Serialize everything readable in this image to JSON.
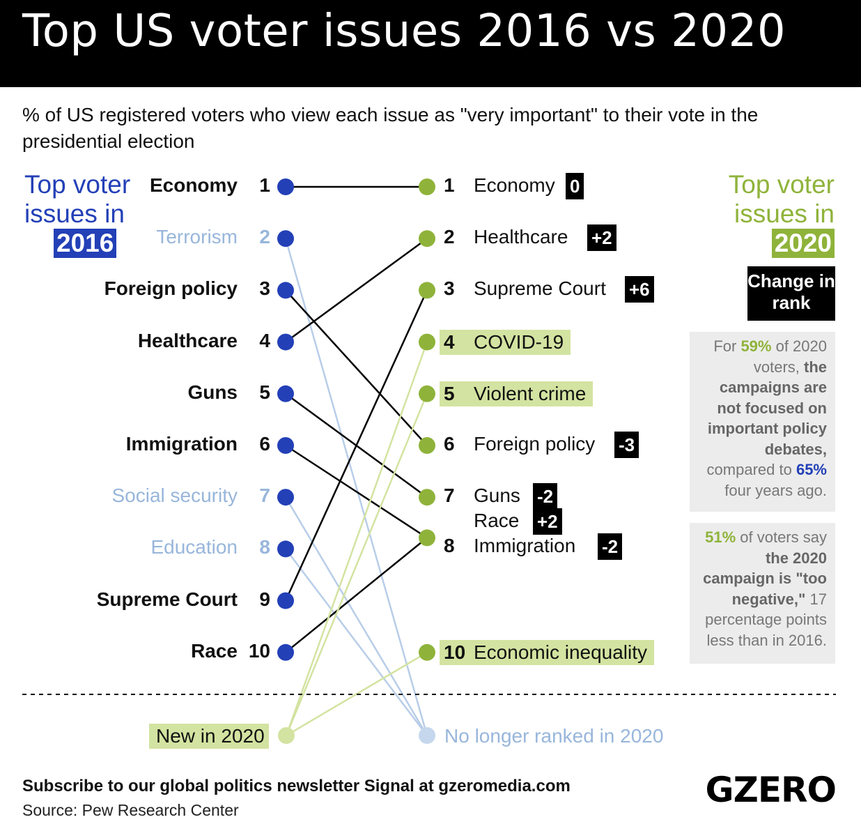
{
  "title": "Top US voter issues 2016 vs 2020",
  "subtitle": "% of US registered voters who view each issue as \"very important\" to their vote in the presidential election",
  "legend_2016": {
    "text": "Top voter issues in",
    "year": "2016"
  },
  "legend_2020": {
    "text": "Top voter issues in",
    "year": "2020"
  },
  "change_label": "Change in rank",
  "notes": {
    "note1": {
      "a": "For ",
      "pct1": "59%",
      "b": " of 2020 voters, ",
      "bold": "the campaigns are not focused on important policy debates,",
      "c": " compared to ",
      "pct2": "65%",
      "d": " four years ago."
    },
    "note2": {
      "pct": "51%",
      "a": " of voters say ",
      "bold1": "the 2020 campaign is \"too negative,\"",
      "b": " 17 percentage points less than in 2016."
    }
  },
  "new_label": "New in 2020",
  "dropped_label": "No longer ranked in 2020",
  "footer": {
    "subscribe": "Subscribe to our global politics newsletter Signal at gzeromedia.com",
    "source": "Source: Pew Research Center"
  },
  "logo": "GZERO",
  "colors": {
    "blue": "#2340b7",
    "green": "#8fb33a",
    "new": "#d3e3a1",
    "dropped": "#b8cde8",
    "line": "#000000"
  },
  "chart_data": {
    "type": "slope",
    "left_title": "2016",
    "right_title": "2020",
    "left": [
      {
        "label": "Economy",
        "rank": "1",
        "status": "kept"
      },
      {
        "label": "Terrorism",
        "rank": "2",
        "status": "dropped"
      },
      {
        "label": "Foreign policy",
        "rank": "3",
        "status": "kept"
      },
      {
        "label": "Healthcare",
        "rank": "4",
        "status": "kept"
      },
      {
        "label": "Guns",
        "rank": "5",
        "status": "kept"
      },
      {
        "label": "Immigration",
        "rank": "6",
        "status": "kept"
      },
      {
        "label": "Social security",
        "rank": "7",
        "status": "dropped"
      },
      {
        "label": "Education",
        "rank": "8",
        "status": "dropped"
      },
      {
        "label": "Supreme Court",
        "rank": "9",
        "status": "kept"
      },
      {
        "label": "Race",
        "rank": "10",
        "status": "kept"
      }
    ],
    "right": [
      {
        "rank": "1",
        "labels": [
          {
            "label": "Economy",
            "change": "0"
          }
        ],
        "status": "kept"
      },
      {
        "rank": "2",
        "labels": [
          {
            "label": "Healthcare",
            "change": "+2"
          }
        ],
        "status": "kept"
      },
      {
        "rank": "3",
        "labels": [
          {
            "label": "Supreme Court",
            "change": "+6"
          }
        ],
        "status": "kept"
      },
      {
        "rank": "4",
        "labels": [
          {
            "label": "COVID-19",
            "change": ""
          }
        ],
        "status": "new"
      },
      {
        "rank": "5",
        "labels": [
          {
            "label": "Violent crime",
            "change": ""
          }
        ],
        "status": "new"
      },
      {
        "rank": "6",
        "labels": [
          {
            "label": "Foreign policy",
            "change": "-3"
          }
        ],
        "status": "kept"
      },
      {
        "rank": "7",
        "labels": [
          {
            "label": "Guns",
            "change": "-2"
          }
        ],
        "status": "kept"
      },
      {
        "rank": "8",
        "labels": [
          {
            "label": "Race",
            "change": "+2"
          },
          {
            "label": "Immigration",
            "change": "-2"
          }
        ],
        "status": "kept"
      },
      {
        "rank": "10",
        "labels": [
          {
            "label": "Economic inequality",
            "change": ""
          }
        ],
        "status": "new"
      }
    ],
    "connections": [
      {
        "from": "Economy",
        "to": "1"
      },
      {
        "from": "Terrorism",
        "to": "dropped"
      },
      {
        "from": "Foreign policy",
        "to": "6"
      },
      {
        "from": "Healthcare",
        "to": "2"
      },
      {
        "from": "Guns",
        "to": "7"
      },
      {
        "from": "Immigration",
        "to": "8"
      },
      {
        "from": "Social security",
        "to": "dropped"
      },
      {
        "from": "Education",
        "to": "dropped"
      },
      {
        "from": "Supreme Court",
        "to": "3"
      },
      {
        "from": "Race",
        "to": "8"
      },
      {
        "from": "new",
        "to": "4"
      },
      {
        "from": "new",
        "to": "5"
      },
      {
        "from": "new",
        "to": "10"
      }
    ]
  }
}
